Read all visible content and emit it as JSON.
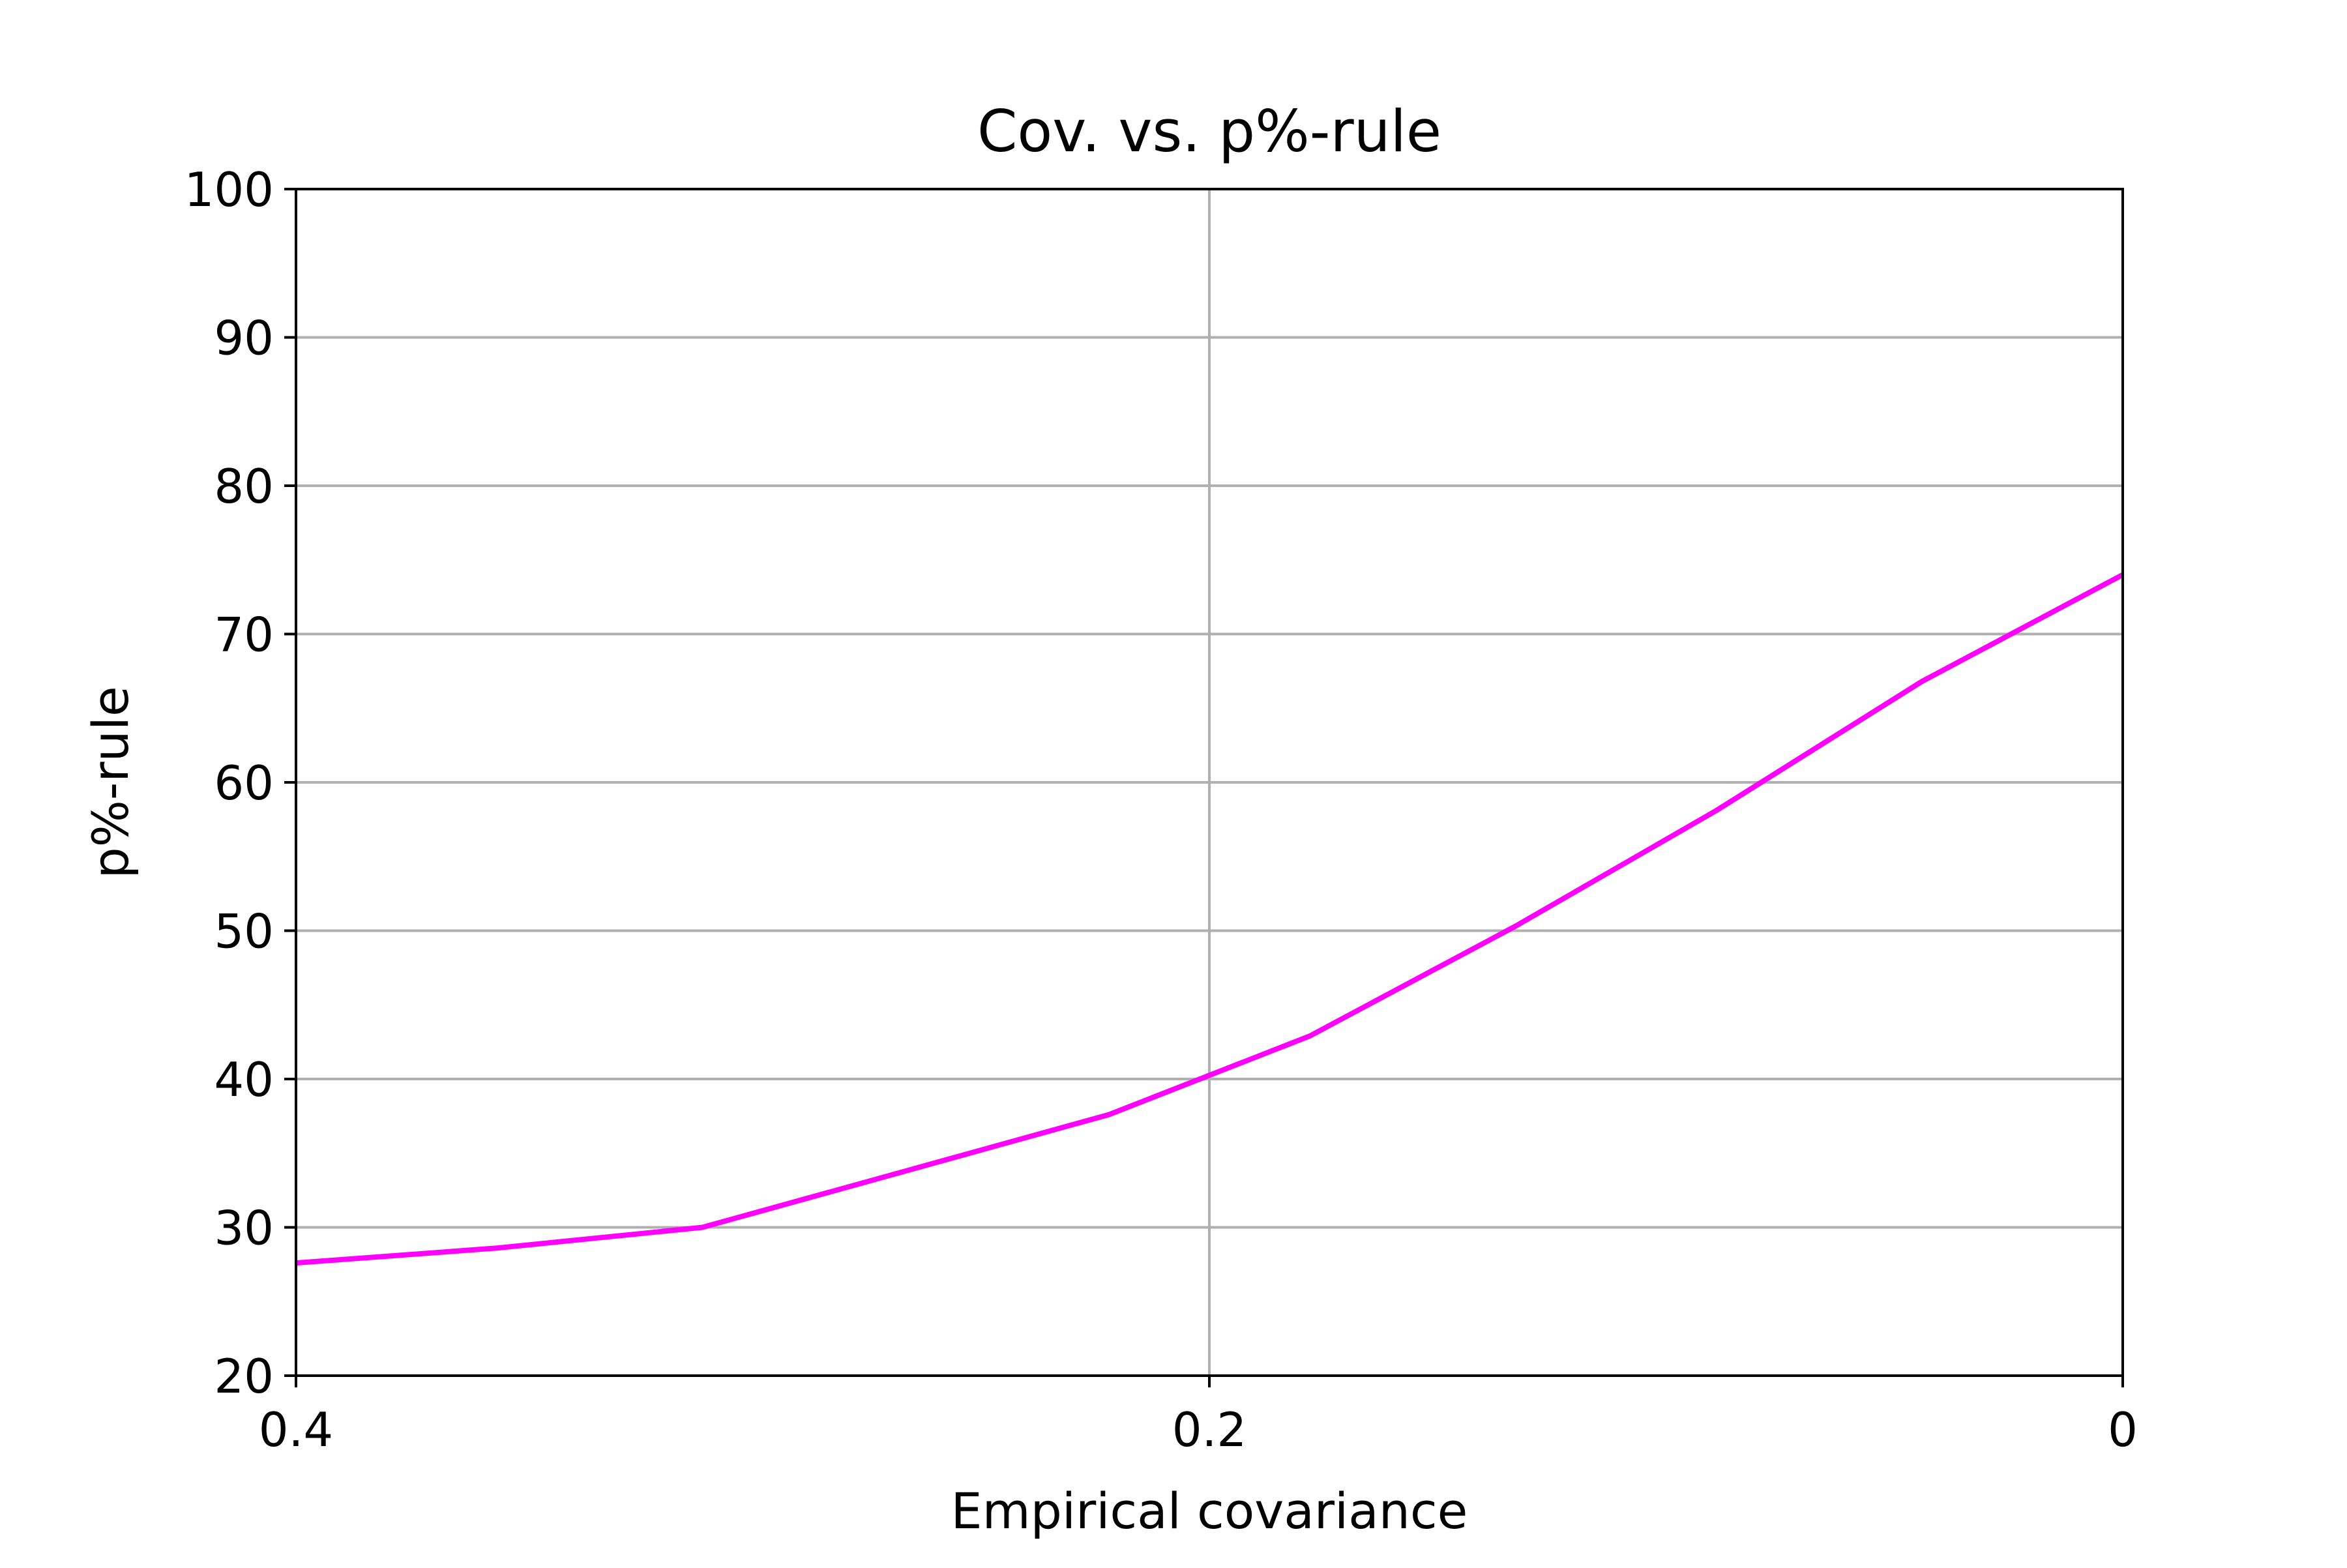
{
  "chart_data": {
    "type": "line",
    "title": "Cov. vs. p%-rule",
    "xlabel": "Empirical covariance",
    "ylabel": "p%-rule",
    "x_axis_inverted": true,
    "xlim": [
      0.4,
      0
    ],
    "ylim": [
      20,
      100
    ],
    "xticks": [
      0.4,
      0.2,
      0
    ],
    "xtick_labels": [
      "0.4",
      "0.2",
      "0"
    ],
    "yticks": [
      20,
      30,
      40,
      50,
      60,
      70,
      80,
      90,
      100
    ],
    "ytick_labels": [
      "20",
      "30",
      "40",
      "50",
      "60",
      "70",
      "80",
      "90",
      "100"
    ],
    "grid": true,
    "series": [
      {
        "color": "#ff00ff",
        "x": [
          0.4,
          0.356,
          0.311,
          0.222,
          0.178,
          0.133,
          0.089,
          0.044,
          0.0
        ],
        "y": [
          27.6,
          28.6,
          30.0,
          37.6,
          42.9,
          50.3,
          58.1,
          66.8,
          74.0
        ]
      }
    ]
  }
}
